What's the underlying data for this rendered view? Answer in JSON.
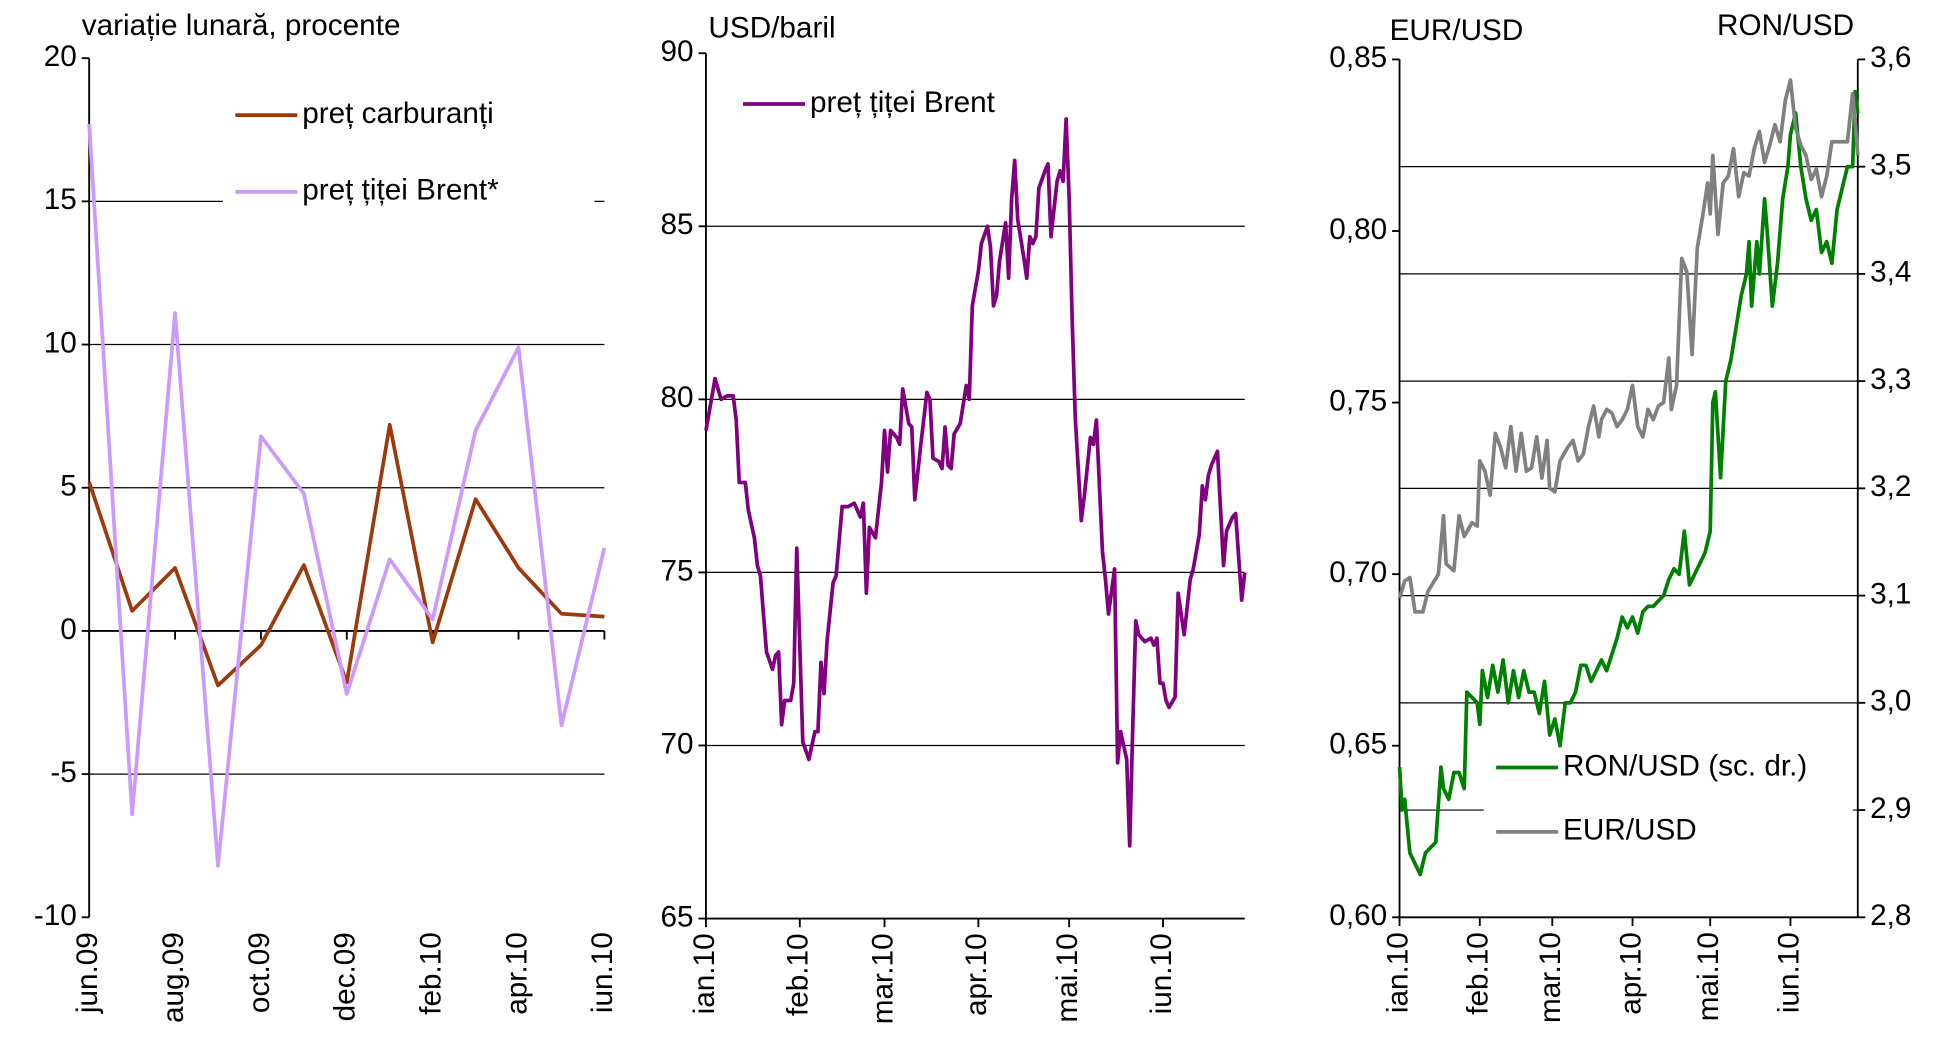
{
  "chart_data": [
    {
      "type": "line",
      "ylabel": "variație lunară, procente",
      "categories": [
        "jun.09",
        null,
        "aug.09",
        null,
        "oct.09",
        null,
        "dec.09",
        null,
        "feb.10",
        null,
        "apr.10",
        null,
        "iun.10"
      ],
      "ylim": [
        -10,
        20
      ],
      "yticks": [
        -10,
        -5,
        0,
        5,
        10,
        15,
        20
      ],
      "grid": true,
      "legend": "top-right",
      "series": [
        {
          "name": "preț carburanți",
          "color": "#9c3a0c",
          "values": [
            5.2,
            0.7,
            2.2,
            -1.9,
            -0.5,
            2.3,
            -1.8,
            7.2,
            -0.4,
            4.6,
            2.2,
            0.6,
            0.5
          ]
        },
        {
          "name": "preț țiței Brent*",
          "color": "#cc99ff",
          "values": [
            17.7,
            -6.4,
            11.1,
            -8.2,
            6.8,
            4.8,
            -2.2,
            2.5,
            0.4,
            7.0,
            9.9,
            -3.3,
            2.9
          ]
        }
      ]
    },
    {
      "type": "line",
      "ylabel": "USD/baril",
      "x": [
        0,
        3,
        5,
        7,
        9,
        10,
        11,
        13,
        14,
        16,
        17,
        18,
        19,
        20,
        22,
        23,
        24,
        25,
        26,
        28,
        29,
        30,
        32,
        34,
        36,
        37,
        38,
        39,
        40,
        42,
        43,
        45,
        47,
        49,
        51,
        52,
        53,
        54,
        56,
        58,
        59,
        60,
        61,
        63,
        64,
        65,
        67,
        68,
        69,
        71,
        73,
        74,
        75,
        77,
        78,
        79,
        80,
        81,
        82,
        84,
        86,
        87,
        88,
        90,
        91,
        93,
        94,
        95,
        96,
        97,
        99,
        100,
        101,
        102,
        103,
        105,
        106,
        107,
        108,
        109,
        110,
        112,
        113,
        114,
        116,
        117,
        118,
        119,
        120,
        121,
        122,
        124,
        125,
        127,
        128,
        129,
        130,
        131,
        132,
        133,
        135,
        136,
        137,
        138,
        139,
        140,
        141,
        142,
        143,
        145,
        147,
        148,
        149,
        150,
        151,
        152,
        153,
        155,
        156,
        158,
        159,
        160,
        161,
        163,
        164,
        165,
        166,
        167,
        169,
        171,
        172,
        174,
        175,
        177,
        178
      ],
      "xlim": [
        0,
        178
      ],
      "xticks": [
        {
          "value": 0,
          "label": "ian.10"
        },
        {
          "value": 31,
          "label": "feb.10"
        },
        {
          "value": 59,
          "label": "mar.10"
        },
        {
          "value": 90,
          "label": "apr.10"
        },
        {
          "value": 120,
          "label": "mai.10"
        },
        {
          "value": 151,
          "label": "iun.10"
        }
      ],
      "ylim": [
        65,
        90
      ],
      "yticks": [
        65,
        70,
        75,
        80,
        85,
        90
      ],
      "grid": true,
      "legend": "top-left",
      "series": [
        {
          "name": "preț țiței Brent",
          "color": "#800080",
          "values": [
            79.1,
            80.6,
            80.0,
            80.1,
            80.1,
            79.4,
            77.6,
            77.6,
            76.8,
            76.0,
            75.2,
            74.9,
            73.8,
            72.7,
            72.2,
            72.6,
            72.7,
            70.6,
            71.3,
            71.3,
            71.8,
            75.7,
            70.1,
            69.6,
            70.4,
            70.4,
            72.4,
            71.5,
            73.0,
            74.7,
            74.9,
            76.9,
            76.9,
            77.0,
            76.6,
            77.0,
            74.4,
            76.3,
            76.0,
            77.6,
            79.1,
            77.9,
            79.1,
            78.9,
            78.7,
            80.3,
            79.3,
            79.2,
            77.1,
            78.7,
            80.2,
            80.0,
            78.3,
            78.2,
            78.0,
            79.2,
            78.1,
            78.0,
            79.0,
            79.3,
            80.4,
            80.0,
            82.7,
            83.7,
            84.5,
            85.0,
            84.4,
            82.7,
            83.0,
            84.0,
            85.1,
            83.5,
            85.8,
            86.9,
            85.2,
            84.1,
            83.5,
            84.7,
            84.5,
            84.7,
            86.1,
            86.6,
            86.8,
            84.7,
            86.3,
            86.6,
            86.3,
            88.1,
            85.8,
            82.3,
            79.5,
            76.5,
            77.2,
            78.9,
            78.7,
            79.4,
            77.5,
            75.6,
            74.8,
            73.8,
            75.1,
            69.5,
            70.4,
            70.0,
            69.6,
            67.1,
            70.5,
            73.6,
            73.2,
            73.0,
            73.1,
            72.9,
            73.1,
            71.8,
            71.8,
            71.3,
            71.1,
            71.4,
            74.4,
            73.2,
            74.0,
            74.8,
            75.1,
            76.1,
            77.5,
            77.1,
            77.8,
            78.1,
            78.5,
            75.2,
            76.2,
            76.6,
            76.7,
            74.2,
            75.0
          ]
        }
      ]
    },
    {
      "type": "line",
      "ylabel": "EUR/USD",
      "y2label": "RON/USD",
      "xlim": [
        0,
        177
      ],
      "xticks": [
        {
          "value": 0,
          "label": "ian.10"
        },
        {
          "value": 31,
          "label": "feb.10"
        },
        {
          "value": 59,
          "label": "mar.10"
        },
        {
          "value": 90,
          "label": "apr.10"
        },
        {
          "value": 120,
          "label": "mai.10"
        },
        {
          "value": 151,
          "label": "iun.10"
        }
      ],
      "ylim": [
        0.6,
        0.85
      ],
      "yticks": [
        {
          "value": 0.6,
          "label": "0,60"
        },
        {
          "value": 0.65,
          "label": "0,65"
        },
        {
          "value": 0.7,
          "label": "0,70"
        },
        {
          "value": 0.75,
          "label": "0,75"
        },
        {
          "value": 0.8,
          "label": "0,80"
        },
        {
          "value": 0.85,
          "label": "0,85"
        }
      ],
      "y2lim": [
        2.8,
        3.6
      ],
      "y2ticks": [
        {
          "value": 2.8,
          "label": "2,8"
        },
        {
          "value": 2.9,
          "label": "2,9"
        },
        {
          "value": 3.0,
          "label": "3,0"
        },
        {
          "value": 3.1,
          "label": "3,1"
        },
        {
          "value": 3.2,
          "label": "3,2"
        },
        {
          "value": 3.3,
          "label": "3,3"
        },
        {
          "value": 3.4,
          "label": "3,4"
        },
        {
          "value": 3.5,
          "label": "3,5"
        },
        {
          "value": 3.6,
          "label": "3,6"
        }
      ],
      "grid": "y2",
      "legend": "bottom-right",
      "series": [
        {
          "name": "RON/USD (sc. dr.)",
          "color": "#008000",
          "axis": "y2",
          "x": [
            0,
            1,
            2,
            4,
            6,
            8,
            10,
            14,
            16,
            17,
            19,
            21,
            23,
            25,
            26,
            28,
            30,
            31,
            32,
            34,
            36,
            38,
            40,
            42,
            44,
            46,
            48,
            50,
            52,
            54,
            56,
            58,
            60,
            62,
            64,
            66,
            68,
            70,
            72,
            74,
            76,
            78,
            80,
            82,
            84,
            86,
            88,
            90,
            92,
            94,
            96,
            98,
            100,
            102,
            104,
            106,
            108,
            110,
            112,
            114,
            116,
            118,
            120,
            121,
            122,
            123,
            124,
            126,
            128,
            130,
            132,
            134,
            135,
            136,
            138,
            139,
            141,
            142,
            144,
            146,
            148,
            150,
            151,
            153,
            155,
            157,
            159,
            161,
            163,
            165,
            167,
            169,
            171,
            173,
            175,
            176,
            177
          ],
          "values": [
            2.94,
            2.9,
            2.91,
            2.86,
            2.85,
            2.84,
            2.86,
            2.87,
            2.94,
            2.92,
            2.91,
            2.935,
            2.935,
            2.92,
            3.01,
            3.005,
            3.0,
            2.98,
            3.03,
            3.005,
            3.035,
            3.01,
            3.04,
            3.0,
            3.03,
            3.005,
            3.03,
            3.01,
            3.01,
            2.99,
            3.02,
            2.97,
            2.985,
            2.96,
            3.0,
            3.0,
            3.01,
            3.035,
            3.035,
            3.02,
            3.03,
            3.04,
            3.03,
            3.045,
            3.06,
            3.08,
            3.07,
            3.08,
            3.065,
            3.085,
            3.09,
            3.09,
            3.095,
            3.1,
            3.115,
            3.125,
            3.12,
            3.16,
            3.11,
            3.12,
            3.13,
            3.14,
            3.16,
            3.28,
            3.29,
            3.25,
            3.21,
            3.3,
            3.32,
            3.35,
            3.38,
            3.4,
            3.43,
            3.37,
            3.43,
            3.4,
            3.47,
            3.44,
            3.37,
            3.41,
            3.47,
            3.5,
            3.53,
            3.55,
            3.5,
            3.47,
            3.45,
            3.46,
            3.42,
            3.43,
            3.41,
            3.46,
            3.48,
            3.5,
            3.5,
            3.57,
            3.55
          ]
        },
        {
          "name": "EUR/USD",
          "color": "#808080",
          "x": [
            0,
            2,
            4,
            6,
            9,
            11,
            15,
            17,
            18,
            21,
            23,
            25,
            28,
            30,
            31,
            33,
            35,
            37,
            39,
            41,
            43,
            45,
            47,
            49,
            51,
            53,
            55,
            57,
            58,
            60,
            62,
            65,
            67,
            69,
            71,
            73,
            75,
            77,
            78,
            80,
            82,
            84,
            86,
            88,
            90,
            92,
            94,
            96,
            98,
            100,
            102,
            104,
            105,
            107,
            109,
            111,
            113,
            115,
            117,
            119,
            120,
            121,
            123,
            125,
            127,
            129,
            131,
            133,
            135,
            137,
            139,
            141,
            143,
            145,
            147,
            149,
            151,
            153,
            155,
            157,
            159,
            161,
            163,
            165,
            167,
            169,
            171,
            173,
            175,
            176,
            177
          ],
          "values": [
            0.693,
            0.698,
            0.699,
            0.689,
            0.689,
            0.695,
            0.7,
            0.717,
            0.703,
            0.701,
            0.717,
            0.711,
            0.715,
            0.714,
            0.733,
            0.73,
            0.723,
            0.741,
            0.737,
            0.731,
            0.743,
            0.73,
            0.741,
            0.73,
            0.731,
            0.74,
            0.728,
            0.739,
            0.725,
            0.724,
            0.733,
            0.737,
            0.739,
            0.733,
            0.735,
            0.743,
            0.749,
            0.74,
            0.745,
            0.748,
            0.747,
            0.743,
            0.745,
            0.748,
            0.755,
            0.743,
            0.74,
            0.748,
            0.745,
            0.749,
            0.75,
            0.763,
            0.748,
            0.755,
            0.792,
            0.788,
            0.764,
            0.795,
            0.804,
            0.814,
            0.805,
            0.822,
            0.799,
            0.814,
            0.816,
            0.824,
            0.81,
            0.817,
            0.816,
            0.824,
            0.829,
            0.82,
            0.825,
            0.831,
            0.826,
            0.838,
            0.844,
            0.83,
            0.825,
            0.822,
            0.815,
            0.818,
            0.81,
            0.816,
            0.826,
            0.826,
            0.826,
            0.826,
            0.84,
            0.832,
            0.822
          ]
        }
      ]
    }
  ]
}
